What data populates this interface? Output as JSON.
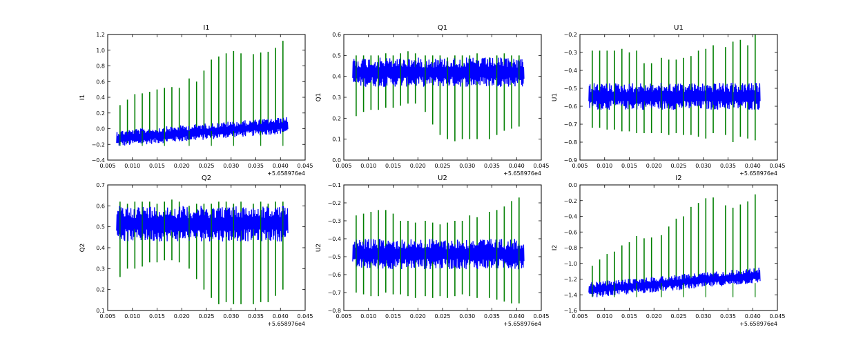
{
  "figure": {
    "background": "#ffffff",
    "series_colors": {
      "spikes": "#007f00",
      "signal": "#0000ff"
    }
  },
  "chart_data": [
    {
      "type": "line",
      "title": "I1",
      "ylabel": "I1",
      "xlim": [
        0.005,
        0.045
      ],
      "xticks": [
        "0.005",
        "0.010",
        "0.015",
        "0.020",
        "0.025",
        "0.030",
        "0.035",
        "0.040",
        "0.045"
      ],
      "x_offset_label": "+5.658976e4",
      "ylim": [
        -0.4,
        1.2
      ],
      "yticks": [
        "−0.4",
        "−0.2",
        "0.0",
        "0.2",
        "0.4",
        "0.6",
        "0.8",
        "1.0",
        "1.2"
      ],
      "data_x_range": [
        0.0068,
        0.0415
      ],
      "series": [
        {
          "name": "signal",
          "color": "#0000ff",
          "band_start": [
            -0.23,
            -0.02
          ],
          "band_end": [
            -0.06,
            0.15
          ]
        },
        {
          "name": "spikes",
          "color": "#007f00",
          "x": [
            0.0075,
            0.009,
            0.0105,
            0.012,
            0.0135,
            0.015,
            0.0165,
            0.018,
            0.0195,
            0.0215,
            0.023,
            0.0245,
            0.026,
            0.0275,
            0.029,
            0.0305,
            0.032,
            0.0345,
            0.036,
            0.0375,
            0.039,
            0.0405
          ],
          "high": [
            0.3,
            0.37,
            0.44,
            0.45,
            0.47,
            0.5,
            0.52,
            0.53,
            0.52,
            0.64,
            0.6,
            0.74,
            0.88,
            0.92,
            0.96,
            0.99,
            0.96,
            0.95,
            0.97,
            0.98,
            1.03,
            1.12
          ],
          "low": [
            -0.2,
            -0.18,
            -0.17,
            -0.14,
            -0.15,
            -0.12,
            -0.12,
            -0.1,
            -0.08,
            -0.1,
            -0.08,
            -0.07,
            -0.05,
            -0.06,
            -0.04,
            -0.03,
            -0.04,
            -0.02,
            -0.03,
            -0.02,
            -0.02,
            -0.01
          ]
        }
      ]
    },
    {
      "type": "line",
      "title": "Q1",
      "ylabel": "Q1",
      "xlim": [
        0.005,
        0.045
      ],
      "xticks": [
        "0.005",
        "0.010",
        "0.015",
        "0.020",
        "0.025",
        "0.030",
        "0.035",
        "0.040",
        "0.045"
      ],
      "x_offset_label": "+5.658976e4",
      "ylim": [
        0.0,
        0.6
      ],
      "yticks": [
        "0.0",
        "0.1",
        "0.2",
        "0.3",
        "0.4",
        "0.5",
        "0.6"
      ],
      "data_x_range": [
        0.0068,
        0.0415
      ],
      "series": [
        {
          "name": "signal",
          "color": "#0000ff",
          "band_start": [
            0.35,
            0.49
          ],
          "band_end": [
            0.35,
            0.49
          ]
        },
        {
          "name": "spikes",
          "color": "#007f00",
          "x": [
            0.0075,
            0.009,
            0.0105,
            0.012,
            0.0135,
            0.015,
            0.0165,
            0.018,
            0.0195,
            0.0215,
            0.023,
            0.0245,
            0.026,
            0.0275,
            0.029,
            0.0305,
            0.032,
            0.0345,
            0.036,
            0.0375,
            0.039,
            0.0405
          ],
          "high": [
            0.5,
            0.5,
            0.5,
            0.5,
            0.51,
            0.5,
            0.51,
            0.52,
            0.51,
            0.5,
            0.5,
            0.5,
            0.49,
            0.5,
            0.5,
            0.5,
            0.51,
            0.49,
            0.5,
            0.51,
            0.5,
            0.5
          ],
          "low": [
            0.21,
            0.23,
            0.24,
            0.24,
            0.25,
            0.25,
            0.26,
            0.27,
            0.27,
            0.23,
            0.17,
            0.12,
            0.1,
            0.09,
            0.1,
            0.1,
            0.1,
            0.1,
            0.12,
            0.14,
            0.15,
            0.16
          ]
        }
      ]
    },
    {
      "type": "line",
      "title": "U1",
      "ylabel": "U1",
      "xlim": [
        0.005,
        0.045
      ],
      "xticks": [
        "0.005",
        "0.010",
        "0.015",
        "0.020",
        "0.025",
        "0.030",
        "0.035",
        "0.040",
        "0.045"
      ],
      "x_offset_label": "+5.658976e4",
      "ylim": [
        -0.9,
        -0.2
      ],
      "yticks": [
        "−0.9",
        "−0.8",
        "−0.7",
        "−0.6",
        "−0.5",
        "−0.4",
        "−0.3",
        "−0.2"
      ],
      "data_x_range": [
        0.0068,
        0.0415
      ],
      "series": [
        {
          "name": "signal",
          "color": "#0000ff",
          "band_start": [
            -0.62,
            -0.47
          ],
          "band_end": [
            -0.62,
            -0.47
          ]
        },
        {
          "name": "spikes",
          "color": "#007f00",
          "x": [
            0.0075,
            0.009,
            0.0105,
            0.012,
            0.0135,
            0.015,
            0.0165,
            0.018,
            0.0195,
            0.0215,
            0.023,
            0.0245,
            0.026,
            0.0275,
            0.029,
            0.0305,
            0.032,
            0.0345,
            0.036,
            0.0375,
            0.039,
            0.0405
          ],
          "high": [
            -0.29,
            -0.29,
            -0.29,
            -0.29,
            -0.28,
            -0.3,
            -0.29,
            -0.36,
            -0.36,
            -0.33,
            -0.34,
            -0.34,
            -0.33,
            -0.32,
            -0.29,
            -0.28,
            -0.26,
            -0.27,
            -0.24,
            -0.23,
            -0.26,
            -0.2
          ],
          "low": [
            -0.72,
            -0.72,
            -0.73,
            -0.73,
            -0.74,
            -0.74,
            -0.75,
            -0.75,
            -0.75,
            -0.75,
            -0.76,
            -0.75,
            -0.76,
            -0.76,
            -0.77,
            -0.78,
            -0.75,
            -0.76,
            -0.8,
            -0.77,
            -0.78,
            -0.79
          ]
        }
      ]
    },
    {
      "type": "line",
      "title": "Q2",
      "ylabel": "Q2",
      "xlim": [
        0.005,
        0.045
      ],
      "xticks": [
        "0.005",
        "0.010",
        "0.015",
        "0.020",
        "0.025",
        "0.030",
        "0.035",
        "0.040",
        "0.045"
      ],
      "x_offset_label": "+5.658976e4",
      "ylim": [
        0.1,
        0.7
      ],
      "yticks": [
        "0.1",
        "0.2",
        "0.3",
        "0.4",
        "0.5",
        "0.6",
        "0.7"
      ],
      "data_x_range": [
        0.0068,
        0.0415
      ],
      "series": [
        {
          "name": "signal",
          "color": "#0000ff",
          "band_start": [
            0.43,
            0.6
          ],
          "band_end": [
            0.43,
            0.6
          ]
        },
        {
          "name": "spikes",
          "color": "#007f00",
          "x": [
            0.0075,
            0.009,
            0.0105,
            0.012,
            0.0135,
            0.015,
            0.0165,
            0.018,
            0.0195,
            0.0215,
            0.023,
            0.0245,
            0.026,
            0.0275,
            0.029,
            0.0305,
            0.032,
            0.0345,
            0.036,
            0.0375,
            0.039,
            0.0405
          ],
          "high": [
            0.62,
            0.61,
            0.62,
            0.62,
            0.62,
            0.61,
            0.62,
            0.63,
            0.62,
            0.6,
            0.61,
            0.61,
            0.61,
            0.62,
            0.62,
            0.61,
            0.62,
            0.61,
            0.62,
            0.61,
            0.62,
            0.62
          ],
          "low": [
            0.26,
            0.3,
            0.3,
            0.31,
            0.33,
            0.33,
            0.34,
            0.34,
            0.33,
            0.3,
            0.25,
            0.2,
            0.16,
            0.13,
            0.14,
            0.13,
            0.13,
            0.13,
            0.14,
            0.14,
            0.17,
            0.2
          ]
        }
      ]
    },
    {
      "type": "line",
      "title": "U2",
      "ylabel": "U2",
      "xlim": [
        0.005,
        0.045
      ],
      "xticks": [
        "0.005",
        "0.010",
        "0.015",
        "0.020",
        "0.025",
        "0.030",
        "0.035",
        "0.040",
        "0.045"
      ],
      "x_offset_label": "+5.658976e4",
      "ylim": [
        -0.8,
        -0.1
      ],
      "yticks": [
        "−0.8",
        "−0.7",
        "−0.6",
        "−0.5",
        "−0.4",
        "−0.3",
        "−0.2",
        "−0.1"
      ],
      "data_x_range": [
        0.0068,
        0.0415
      ],
      "series": [
        {
          "name": "signal",
          "color": "#0000ff",
          "band_start": [
            -0.57,
            -0.4
          ],
          "band_end": [
            -0.57,
            -0.4
          ]
        },
        {
          "name": "spikes",
          "color": "#007f00",
          "x": [
            0.0075,
            0.009,
            0.0105,
            0.012,
            0.0135,
            0.015,
            0.0165,
            0.018,
            0.0195,
            0.0215,
            0.023,
            0.0245,
            0.026,
            0.0275,
            0.029,
            0.0305,
            0.032,
            0.0345,
            0.036,
            0.0375,
            0.039,
            0.0405
          ],
          "high": [
            -0.27,
            -0.26,
            -0.25,
            -0.24,
            -0.24,
            -0.26,
            -0.3,
            -0.3,
            -0.31,
            -0.3,
            -0.31,
            -0.32,
            -0.31,
            -0.3,
            -0.3,
            -0.27,
            -0.28,
            -0.25,
            -0.24,
            -0.22,
            -0.19,
            -0.17
          ],
          "low": [
            -0.7,
            -0.71,
            -0.72,
            -0.72,
            -0.7,
            -0.71,
            -0.71,
            -0.72,
            -0.73,
            -0.72,
            -0.73,
            -0.72,
            -0.73,
            -0.72,
            -0.71,
            -0.72,
            -0.73,
            -0.73,
            -0.74,
            -0.75,
            -0.76,
            -0.76
          ]
        }
      ]
    },
    {
      "type": "line",
      "title": "I2",
      "ylabel": "I2",
      "xlim": [
        0.005,
        0.045
      ],
      "xticks": [
        "0.005",
        "0.010",
        "0.015",
        "0.020",
        "0.025",
        "0.030",
        "0.035",
        "0.040",
        "0.045"
      ],
      "x_offset_label": "+5.658976e4",
      "ylim": [
        -1.6,
        0.0
      ],
      "yticks": [
        "−1.6",
        "−1.4",
        "−1.2",
        "−1.0",
        "−0.8",
        "−0.6",
        "−0.4",
        "−0.2",
        "0.0"
      ],
      "data_x_range": [
        0.0068,
        0.0415
      ],
      "series": [
        {
          "name": "signal",
          "color": "#0000ff",
          "band_start": [
            -1.44,
            -1.24
          ],
          "band_end": [
            -1.25,
            -1.05
          ]
        },
        {
          "name": "spikes",
          "color": "#007f00",
          "x": [
            0.0075,
            0.009,
            0.0105,
            0.012,
            0.0135,
            0.015,
            0.0165,
            0.018,
            0.0195,
            0.0215,
            0.023,
            0.0245,
            0.026,
            0.0275,
            0.029,
            0.0305,
            0.032,
            0.0345,
            0.036,
            0.0375,
            0.039,
            0.0405
          ],
          "high": [
            -1.03,
            -0.95,
            -0.88,
            -0.85,
            -0.77,
            -0.73,
            -0.65,
            -0.68,
            -0.67,
            -0.64,
            -0.53,
            -0.43,
            -0.4,
            -0.28,
            -0.23,
            -0.17,
            -0.16,
            -0.26,
            -0.29,
            -0.25,
            -0.21,
            -0.12
          ],
          "low": [
            -1.42,
            -1.4,
            -1.38,
            -1.36,
            -1.35,
            -1.34,
            -1.33,
            -1.32,
            -1.31,
            -1.3,
            -1.29,
            -1.28,
            -1.27,
            -1.26,
            -1.25,
            -1.25,
            -1.24,
            -1.23,
            -1.22,
            -1.21,
            -1.2,
            -1.2
          ]
        }
      ]
    }
  ]
}
